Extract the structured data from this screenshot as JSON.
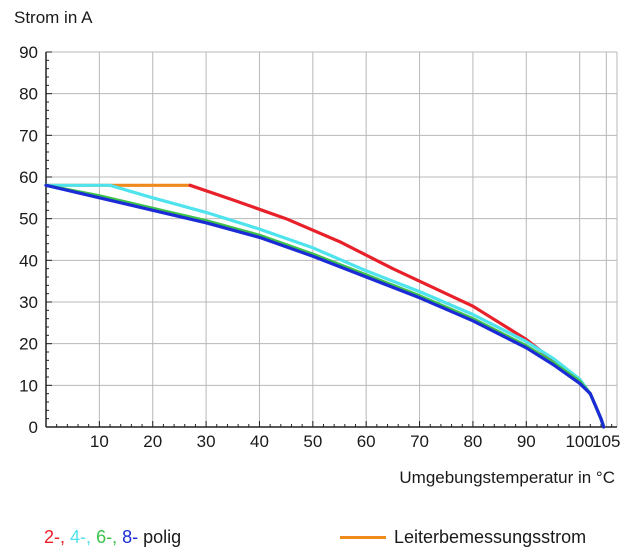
{
  "chart_data": {
    "type": "line",
    "ylabel": "Strom in A",
    "xlabel": "Umgebungstemperatur in °C",
    "xlim": [
      0,
      107
    ],
    "ylim": [
      0,
      90
    ],
    "x_ticks": [
      10,
      20,
      30,
      40,
      50,
      60,
      70,
      80,
      90,
      100,
      105
    ],
    "y_ticks": [
      0,
      10,
      20,
      30,
      40,
      50,
      60,
      70,
      80,
      90
    ],
    "grid": true,
    "legend": {
      "poles_prefix": [
        {
          "text": "2-,",
          "color": "#e8202a"
        },
        {
          "text": "4-,",
          "color": "#4fe3ee"
        },
        {
          "text": "6-,",
          "color": "#3cc24a"
        },
        {
          "text": "8-",
          "color": "#1b2bd6"
        }
      ],
      "poles_suffix": "polig",
      "rated_current_label": "Leiterbemessungsstrom",
      "rated_current_color": "#f08a1c"
    },
    "series": [
      {
        "name": "Leiterbemessungsstrom",
        "color": "#f08a1c",
        "x": [
          0,
          27
        ],
        "y": [
          58,
          58
        ]
      },
      {
        "name": "2-",
        "color": "#e8202a",
        "x": [
          27,
          35,
          45,
          55,
          65,
          75,
          80,
          85,
          90,
          95,
          100,
          102,
          103,
          104,
          104.5
        ],
        "y": [
          58,
          54.5,
          50,
          44.5,
          38,
          32,
          29,
          25,
          21,
          16,
          11,
          8,
          5,
          2,
          0
        ]
      },
      {
        "name": "4-",
        "color": "#4fe3ee",
        "x": [
          0,
          12,
          20,
          30,
          40,
          50,
          60,
          70,
          80,
          90,
          95,
          100,
          102,
          103,
          104,
          104.5
        ],
        "y": [
          58,
          58,
          55,
          51.5,
          47.5,
          43,
          37.5,
          32.5,
          27,
          20.5,
          16.5,
          11.5,
          8,
          5,
          2,
          0
        ]
      },
      {
        "name": "6-",
        "color": "#3cc24a",
        "x": [
          0,
          10,
          20,
          30,
          40,
          50,
          60,
          70,
          80,
          90,
          95,
          100,
          102,
          103,
          104,
          104.5
        ],
        "y": [
          58,
          55.5,
          52.5,
          49.5,
          46,
          41.5,
          36.5,
          31.5,
          26,
          19.5,
          15.5,
          11,
          8,
          5,
          2,
          0
        ]
      },
      {
        "name": "8-",
        "color": "#1b2bd6",
        "x": [
          0,
          10,
          20,
          30,
          40,
          50,
          60,
          70,
          80,
          90,
          95,
          100,
          102,
          103,
          104,
          104.5
        ],
        "y": [
          58,
          55,
          52,
          49,
          45.5,
          41,
          36,
          31,
          25.5,
          19,
          15,
          10.5,
          8,
          5,
          2,
          0
        ]
      }
    ]
  }
}
